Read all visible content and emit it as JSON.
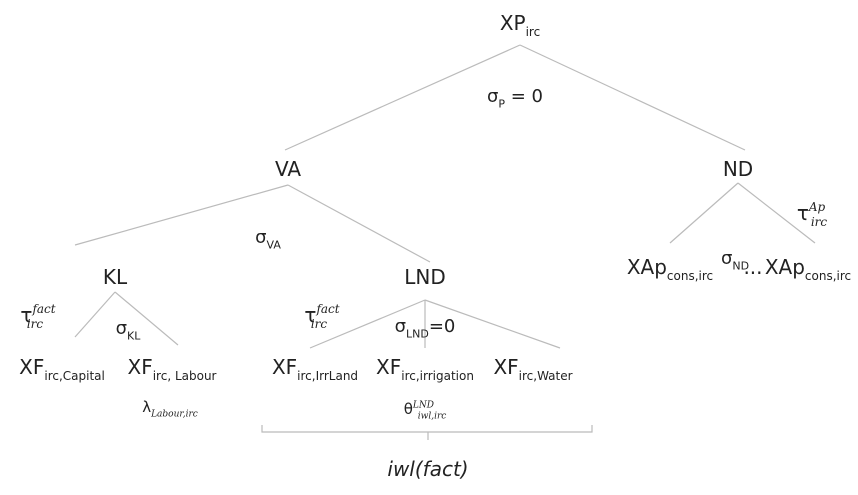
{
  "nodes": [
    {
      "base": "XP",
      "sub": "irc"
    },
    {
      "base": "VA"
    },
    {
      "base": "ND"
    },
    {
      "base": "KL"
    },
    {
      "base": "LND"
    },
    {
      "base": "XF",
      "sub": "irc,Capital"
    },
    {
      "base": "XF",
      "sub": "irc, Labour"
    },
    {
      "base": "XF",
      "sub": "irc,IrrLand"
    },
    {
      "base": "XF",
      "sub": "irc,irrigation"
    },
    {
      "base": "XF",
      "sub": "irc,Water"
    },
    {
      "base": "XAp",
      "sub": "cons,irc"
    },
    {
      "base": "..."
    },
    {
      "base": "XAp",
      "sub": "cons,irc"
    }
  ],
  "annotations": [
    {
      "base": "σ",
      "sub": "P",
      "after": " = 0"
    },
    {
      "base": "σ",
      "sub": "VA"
    },
    {
      "base": "σ",
      "sub": "ND"
    },
    {
      "base": "τ",
      "sup": "Ap",
      "sub": "irc"
    },
    {
      "base": "τ",
      "sup": "fact",
      "sub": "irc"
    },
    {
      "base": "σ",
      "sub": "KL"
    },
    {
      "base": "τ",
      "sup": "fact",
      "sub": "irc"
    },
    {
      "base": "σ",
      "sub": "LND",
      "after": "=0"
    },
    {
      "base": "λ",
      "sub": "Labour,irc"
    },
    {
      "base": "θ",
      "sup": "LND",
      "sub": "iwl,irc"
    }
  ],
  "brace_label": "iwl(fact)"
}
